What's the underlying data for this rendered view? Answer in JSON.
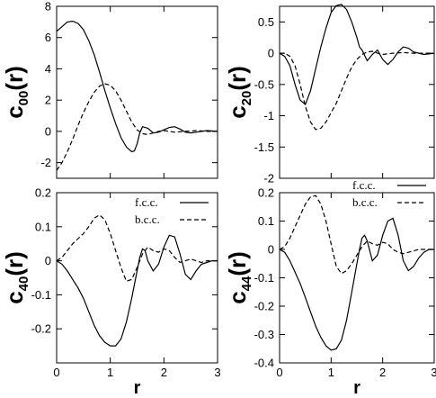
{
  "chart_data": [
    {
      "type": "line",
      "ylabel": {
        "base": "c",
        "sub": "00",
        "suffix": "(r)"
      },
      "xlabel": "",
      "xlim": [
        0,
        3
      ],
      "ylim": [
        -3,
        8
      ],
      "xticks": [
        "0",
        "1",
        "2",
        "3"
      ],
      "yticks": [
        "-2",
        "0",
        "2",
        "4",
        "6",
        "8"
      ],
      "legend": null,
      "series": [
        {
          "style": "solid",
          "x": [
            0,
            0.1,
            0.2,
            0.3,
            0.4,
            0.5,
            0.6,
            0.7,
            0.8,
            0.9,
            1.0,
            1.1,
            1.2,
            1.3,
            1.4,
            1.45,
            1.5,
            1.55,
            1.6,
            1.7,
            1.8,
            1.9,
            2.0,
            2.1,
            2.2,
            2.3,
            2.4,
            2.5,
            2.6,
            2.8,
            3.0
          ],
          "y": [
            6.4,
            6.7,
            7.0,
            7.05,
            6.9,
            6.5,
            5.8,
            4.9,
            3.8,
            2.6,
            1.5,
            0.5,
            -0.4,
            -1.0,
            -1.3,
            -1.25,
            -0.8,
            -0.1,
            0.3,
            0.2,
            -0.1,
            -0.05,
            0.1,
            0.25,
            0.3,
            0.15,
            -0.05,
            -0.1,
            -0.05,
            0.05,
            0.0
          ]
        },
        {
          "style": "dashed",
          "x": [
            0,
            0.1,
            0.2,
            0.3,
            0.4,
            0.5,
            0.6,
            0.7,
            0.8,
            0.9,
            1.0,
            1.1,
            1.2,
            1.3,
            1.4,
            1.5,
            1.6,
            1.7,
            1.8,
            1.9,
            2.0,
            2.2,
            2.4,
            2.6,
            2.8,
            3.0
          ],
          "y": [
            -2.5,
            -2.0,
            -1.3,
            -0.5,
            0.4,
            1.2,
            1.9,
            2.5,
            2.9,
            3.05,
            2.95,
            2.6,
            2.0,
            1.3,
            0.6,
            0.1,
            -0.15,
            -0.2,
            -0.1,
            0.0,
            0.05,
            -0.05,
            0.0,
            0.05,
            0.0,
            0.0
          ]
        }
      ]
    },
    {
      "type": "line",
      "ylabel": {
        "base": "c",
        "sub": "20",
        "suffix": "(r)"
      },
      "xlabel": "",
      "xlim": [
        0,
        3
      ],
      "ylim": [
        -2,
        0.75
      ],
      "xticks": [
        "0",
        "1",
        "2",
        "3"
      ],
      "yticks": [
        "-2",
        "-1.5",
        "-1",
        "-0.5",
        "0",
        "0.5"
      ],
      "legend": null,
      "series": [
        {
          "style": "solid",
          "x": [
            0,
            0.1,
            0.2,
            0.3,
            0.4,
            0.5,
            0.6,
            0.7,
            0.8,
            0.9,
            1.0,
            1.1,
            1.2,
            1.3,
            1.4,
            1.5,
            1.55,
            1.6,
            1.7,
            1.8,
            1.9,
            2.0,
            2.1,
            2.2,
            2.3,
            2.4,
            2.5,
            2.6,
            2.8,
            3.0
          ],
          "y": [
            0.0,
            -0.05,
            -0.2,
            -0.5,
            -0.75,
            -0.82,
            -0.6,
            -0.25,
            0.1,
            0.4,
            0.65,
            0.76,
            0.78,
            0.7,
            0.5,
            0.25,
            0.1,
            0.05,
            -0.12,
            -0.02,
            0.05,
            -0.1,
            -0.18,
            -0.1,
            0.02,
            0.1,
            0.08,
            0.02,
            -0.02,
            0.0
          ]
        },
        {
          "style": "dashed",
          "x": [
            0,
            0.1,
            0.2,
            0.3,
            0.4,
            0.5,
            0.6,
            0.7,
            0.8,
            0.9,
            1.0,
            1.1,
            1.2,
            1.3,
            1.4,
            1.5,
            1.6,
            1.7,
            1.8,
            1.9,
            2.0,
            2.2,
            2.4,
            2.6,
            2.8,
            3.0
          ],
          "y": [
            0.0,
            0.0,
            -0.05,
            -0.2,
            -0.5,
            -0.85,
            -1.1,
            -1.22,
            -1.2,
            -1.1,
            -0.95,
            -0.8,
            -0.6,
            -0.4,
            -0.22,
            -0.1,
            -0.02,
            0.02,
            0.03,
            0.0,
            -0.02,
            0.0,
            0.01,
            0.0,
            0.0,
            0.0
          ]
        }
      ]
    },
    {
      "type": "line",
      "ylabel": {
        "base": "c",
        "sub": "40",
        "suffix": "(r)"
      },
      "xlabel": "r",
      "xlim": [
        0,
        3
      ],
      "ylim": [
        -0.3,
        0.2
      ],
      "xticks": [
        "0",
        "1",
        "2",
        "3"
      ],
      "yticks": [
        "-0.2",
        "-0.1",
        "0",
        "0.1",
        "0.2"
      ],
      "legend": {
        "position": "top-right",
        "entries": [
          {
            "label": "f.c.c.",
            "style": "solid"
          },
          {
            "label": "b.c.c.",
            "style": "dashed"
          }
        ]
      },
      "series": [
        {
          "style": "solid",
          "x": [
            0,
            0.1,
            0.2,
            0.3,
            0.4,
            0.5,
            0.6,
            0.7,
            0.8,
            0.9,
            1.0,
            1.1,
            1.2,
            1.3,
            1.4,
            1.5,
            1.55,
            1.6,
            1.65,
            1.7,
            1.8,
            1.9,
            2.0,
            2.1,
            2.2,
            2.3,
            2.4,
            2.5,
            2.6,
            2.7,
            2.8,
            2.9,
            3.0
          ],
          "y": [
            0.0,
            -0.01,
            -0.03,
            -0.055,
            -0.08,
            -0.11,
            -0.15,
            -0.19,
            -0.22,
            -0.24,
            -0.25,
            -0.25,
            -0.23,
            -0.18,
            -0.11,
            -0.03,
            0.01,
            0.035,
            0.03,
            0.0,
            -0.03,
            -0.01,
            0.04,
            0.075,
            0.07,
            0.02,
            -0.04,
            -0.055,
            -0.03,
            -0.01,
            -0.005,
            0.0,
            0.0
          ]
        },
        {
          "style": "dashed",
          "x": [
            0,
            0.1,
            0.2,
            0.3,
            0.4,
            0.5,
            0.6,
            0.7,
            0.8,
            0.9,
            1.0,
            1.1,
            1.2,
            1.3,
            1.4,
            1.5,
            1.6,
            1.7,
            1.8,
            1.9,
            2.0,
            2.1,
            2.2,
            2.3,
            2.4,
            2.5,
            2.6,
            2.7,
            2.8,
            3.0
          ],
          "y": [
            0.0,
            0.01,
            0.03,
            0.05,
            0.065,
            0.08,
            0.1,
            0.125,
            0.135,
            0.12,
            0.08,
            0.03,
            -0.02,
            -0.06,
            -0.055,
            -0.02,
            0.02,
            0.04,
            0.03,
            0.025,
            0.035,
            0.03,
            0.01,
            -0.005,
            0.0,
            0.005,
            0.0,
            -0.005,
            0.0,
            0.0
          ]
        }
      ]
    },
    {
      "type": "line",
      "ylabel": {
        "base": "c",
        "sub": "44",
        "suffix": "(r)"
      },
      "xlabel": "r",
      "xlim": [
        0,
        3
      ],
      "ylim": [
        -0.4,
        0.2
      ],
      "xticks": [
        "0",
        "1",
        "2",
        "3"
      ],
      "yticks": [
        "-0.4",
        "-0.3",
        "-0.2",
        "-0.1",
        "0",
        "0.1",
        "0.2"
      ],
      "legend": {
        "position": "top-right",
        "entries": [
          {
            "label": "f.c.c.",
            "style": "solid"
          },
          {
            "label": "b.c.c.",
            "style": "dashed"
          }
        ]
      },
      "series": [
        {
          "style": "solid",
          "x": [
            0,
            0.1,
            0.2,
            0.3,
            0.4,
            0.5,
            0.6,
            0.7,
            0.8,
            0.9,
            1.0,
            1.1,
            1.2,
            1.3,
            1.4,
            1.5,
            1.55,
            1.6,
            1.65,
            1.7,
            1.8,
            1.9,
            2.0,
            2.1,
            2.2,
            2.3,
            2.4,
            2.5,
            2.6,
            2.7,
            2.8,
            2.9,
            3.0
          ],
          "y": [
            0.0,
            -0.01,
            -0.04,
            -0.08,
            -0.12,
            -0.17,
            -0.22,
            -0.27,
            -0.31,
            -0.34,
            -0.355,
            -0.35,
            -0.32,
            -0.25,
            -0.15,
            -0.05,
            0.0,
            0.04,
            0.05,
            0.03,
            -0.04,
            -0.02,
            0.05,
            0.1,
            0.11,
            0.05,
            -0.04,
            -0.075,
            -0.06,
            -0.03,
            -0.01,
            0.0,
            0.0
          ]
        },
        {
          "style": "dashed",
          "x": [
            0,
            0.1,
            0.2,
            0.3,
            0.4,
            0.5,
            0.6,
            0.7,
            0.8,
            0.9,
            1.0,
            1.1,
            1.2,
            1.3,
            1.4,
            1.5,
            1.6,
            1.7,
            1.8,
            1.9,
            2.0,
            2.1,
            2.2,
            2.3,
            2.4,
            2.5,
            2.6,
            2.7,
            2.8,
            3.0
          ],
          "y": [
            0.0,
            0.01,
            0.04,
            0.08,
            0.12,
            0.16,
            0.185,
            0.19,
            0.16,
            0.1,
            0.02,
            -0.06,
            -0.085,
            -0.075,
            -0.05,
            -0.02,
            0.01,
            0.03,
            0.02,
            0.015,
            0.025,
            0.02,
            0.0,
            -0.01,
            -0.015,
            -0.01,
            -0.005,
            0.0,
            0.0,
            0.0
          ]
        }
      ]
    }
  ]
}
